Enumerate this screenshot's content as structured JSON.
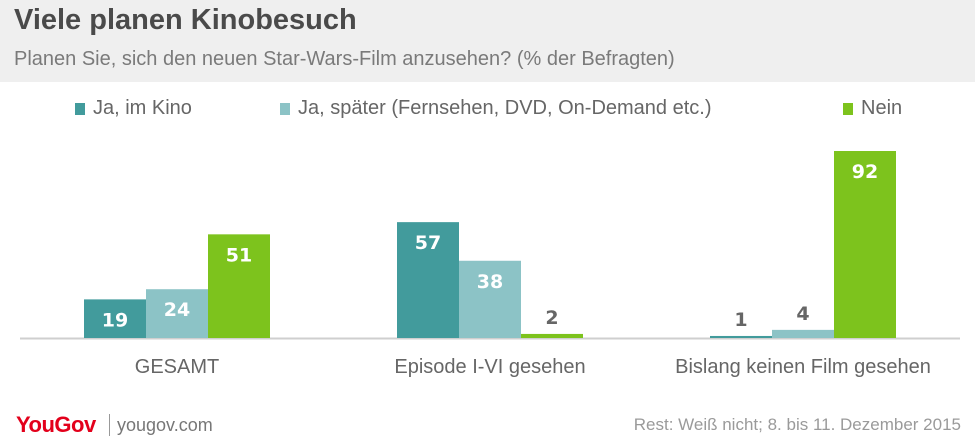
{
  "header": {
    "title": "Viele planen Kinobesuch",
    "subtitle": "Planen Sie, sich den neuen Star-Wars-Film anzusehen? (% der Befragten)"
  },
  "colors": {
    "header_bg": "#efefef",
    "series_1": "#429b9c",
    "series_2": "#8cc3c6",
    "series_3": "#7dc31d"
  },
  "chart_data": {
    "type": "bar",
    "title": "Viele planen Kinobesuch",
    "subtitle": "Planen Sie, sich den neuen Star-Wars-Film anzusehen? (% der Befragten)",
    "categories": [
      "GESAMT",
      "Episode I-VI gesehen",
      "Bislang keinen Film gesehen"
    ],
    "series": [
      {
        "name": "Ja, im Kino",
        "values": [
          19,
          57,
          1
        ],
        "color": "#429b9c"
      },
      {
        "name": "Ja, später (Fernsehen, DVD, On-Demand etc.)",
        "values": [
          24,
          38,
          4
        ],
        "color": "#8cc3c6"
      },
      {
        "name": "Nein",
        "values": [
          51,
          2,
          92
        ],
        "color": "#7dc31d"
      }
    ],
    "ylim": [
      0,
      92
    ],
    "grid": false,
    "legend": "top"
  },
  "footer": {
    "logo": "YouGov",
    "site": "yougov.com",
    "note": "Rest: Weiß nicht; 8. bis 11. Dezember 2015"
  }
}
